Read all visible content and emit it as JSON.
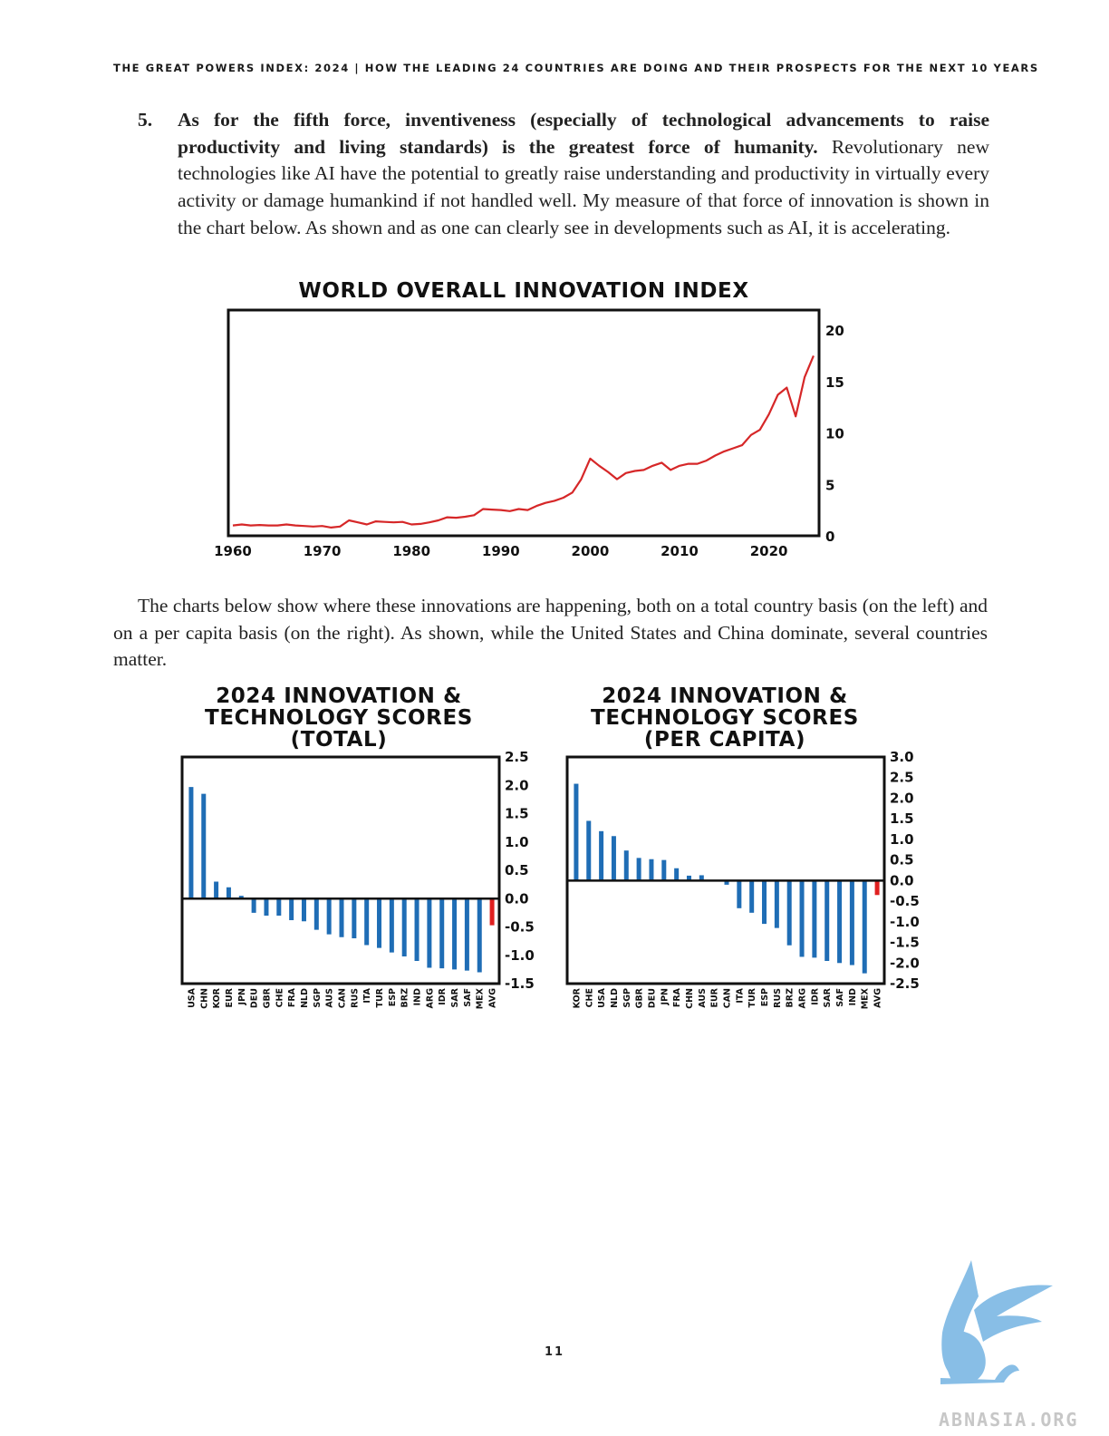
{
  "header": "THE GREAT POWERS INDEX: 2024 | HOW THE LEADING 24 COUNTRIES ARE DOING AND THEIR PROSPECTS FOR THE NEXT 10 YEARS",
  "point5": {
    "number": "5.",
    "bold": "As for the fifth force, inventiveness (especially of technological advancements to raise productivity and living standards) is the greatest force of humanity.",
    "text": " Revolutionary new technologies like AI have the potential to greatly raise understanding and productivity in virtually every activity or damage humankind if not handled well. My measure of that force of innovation is shown in the chart below. As shown and as one can clearly see in developments such as AI, it is accelerating."
  },
  "paragraph2": "The charts below show where these innovations are happening, both on a total country basis (on the left) and on a per capita basis (on the right). As shown, while the United States and China dominate, several countries matter.",
  "page_number": "11",
  "watermark": "ABNASIA.ORG",
  "colors": {
    "line": "#d62728",
    "bar": "#1f6db5",
    "avg_bar": "#e02020",
    "frame": "#111111"
  },
  "chart_data": [
    {
      "type": "line",
      "title": "WORLD OVERALL INNOVATION INDEX",
      "xlabel": "",
      "ylabel": "",
      "xlim": [
        1960,
        2026
      ],
      "ylim": [
        0,
        22
      ],
      "xticks": [
        1960,
        1970,
        1980,
        1990,
        2000,
        2010,
        2020
      ],
      "yticks": [
        0,
        5,
        10,
        15,
        20
      ],
      "y_axis_side": "right",
      "grid": false,
      "series": [
        {
          "x": [
            1960,
            1961,
            1962,
            1963,
            1964,
            1965,
            1966,
            1967,
            1968,
            1969,
            1970,
            1971,
            1972,
            1973,
            1974,
            1975,
            1976,
            1977,
            1978,
            1979,
            1980,
            1981,
            1982,
            1983,
            1984,
            1985,
            1986,
            1987,
            1988,
            1989,
            1990,
            1991,
            1992,
            1993,
            1994,
            1995,
            1996,
            1997,
            1998,
            1999,
            2000,
            2001,
            2002,
            2003,
            2004,
            2005,
            2006,
            2007,
            2008,
            2009,
            2010,
            2011,
            2012,
            2013,
            2014,
            2015,
            2016,
            2017,
            2018,
            2019,
            2020,
            2021,
            2022,
            2023,
            2024,
            2025
          ],
          "y": [
            1.0,
            1.1,
            1.0,
            1.05,
            1.0,
            1.0,
            1.1,
            1.0,
            0.95,
            0.9,
            0.95,
            0.8,
            0.9,
            1.5,
            1.3,
            1.1,
            1.4,
            1.35,
            1.3,
            1.35,
            1.1,
            1.15,
            1.3,
            1.5,
            1.8,
            1.75,
            1.85,
            2.0,
            2.6,
            2.55,
            2.5,
            2.4,
            2.6,
            2.5,
            2.9,
            3.2,
            3.4,
            3.7,
            4.2,
            5.5,
            7.5,
            6.8,
            6.2,
            5.5,
            6.1,
            6.3,
            6.4,
            6.8,
            7.1,
            6.4,
            6.8,
            7.0,
            7.0,
            7.3,
            7.8,
            8.2,
            8.5,
            8.8,
            9.8,
            10.3,
            11.8,
            13.7,
            14.4,
            11.6,
            15.4,
            17.5
          ]
        }
      ]
    },
    {
      "type": "bar",
      "title": "2024 INNOVATION & TECHNOLOGY SCORES (TOTAL)",
      "xlabel": "",
      "ylabel": "",
      "ylim": [
        -1.5,
        2.5
      ],
      "yticks": [
        "2.5",
        "2.0",
        "1.5",
        "1.0",
        "0.5",
        "0.0",
        "-0.5",
        "-1.0",
        "-1.5"
      ],
      "y_axis_side": "right",
      "categories": [
        "USA",
        "CHN",
        "KOR",
        "EUR",
        "JPN",
        "DEU",
        "GBR",
        "CHE",
        "FRA",
        "NLD",
        "SGP",
        "AUS",
        "CAN",
        "RUS",
        "ITA",
        "TUR",
        "ESP",
        "BRZ",
        "IND",
        "ARG",
        "IDR",
        "SAR",
        "SAF",
        "MEX",
        "AVG"
      ],
      "values": [
        1.97,
        1.85,
        0.3,
        0.2,
        0.05,
        -0.25,
        -0.3,
        -0.3,
        -0.38,
        -0.4,
        -0.55,
        -0.63,
        -0.68,
        -0.7,
        -0.82,
        -0.87,
        -0.95,
        -1.02,
        -1.1,
        -1.22,
        -1.23,
        -1.25,
        -1.27,
        -1.3,
        -0.47
      ]
    },
    {
      "type": "bar",
      "title": "2024 INNOVATION & TECHNOLOGY SCORES (PER CAPITA)",
      "xlabel": "",
      "ylabel": "",
      "ylim": [
        -2.5,
        3.0
      ],
      "yticks": [
        "3.0",
        "2.5",
        "2.0",
        "1.5",
        "1.0",
        "0.5",
        "0.0",
        "-0.5",
        "-1.0",
        "-1.5",
        "-2.0",
        "-2.5"
      ],
      "y_axis_side": "right",
      "categories": [
        "KOR",
        "CHE",
        "USA",
        "NLD",
        "SGP",
        "GBR",
        "DEU",
        "JPN",
        "FRA",
        "CHN",
        "AUS",
        "EUR",
        "CAN",
        "ITA",
        "TUR",
        "ESP",
        "RUS",
        "BRZ",
        "ARG",
        "IDR",
        "SAR",
        "SAF",
        "IND",
        "MEX",
        "AVG"
      ],
      "values": [
        2.35,
        1.45,
        1.2,
        1.08,
        0.73,
        0.55,
        0.52,
        0.5,
        0.3,
        0.12,
        0.13,
        0.0,
        -0.1,
        -0.67,
        -0.78,
        -1.05,
        -1.15,
        -1.57,
        -1.85,
        -1.87,
        -1.95,
        -2.0,
        -2.05,
        -2.25,
        -0.35
      ]
    }
  ]
}
